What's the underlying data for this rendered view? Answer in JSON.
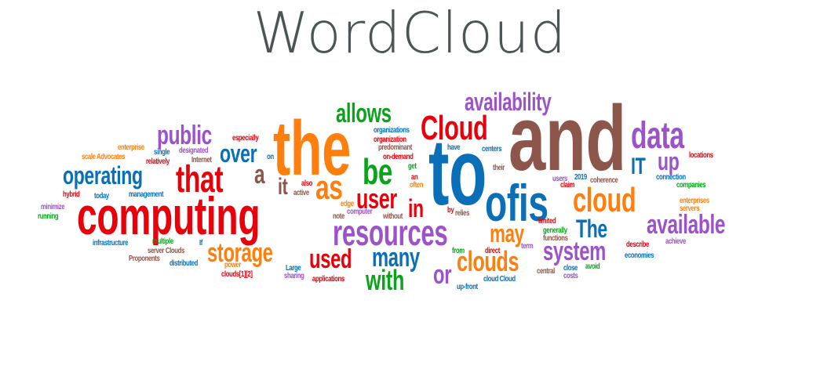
{
  "title": "WordCloud",
  "colors": {
    "red": "#e8000b",
    "orange": "#ff7f0e",
    "blue": "#0a6fb6",
    "green": "#0aa31b",
    "purple": "#9c52c8",
    "brown": "#8c564b"
  },
  "words": [
    {
      "text": "and"
    },
    {
      "text": "to"
    },
    {
      "text": "the"
    },
    {
      "text": "computing"
    },
    {
      "text": "ofis"
    },
    {
      "text": "resources"
    },
    {
      "text": "Cloud"
    },
    {
      "text": "cloud"
    },
    {
      "text": "data"
    },
    {
      "text": "that"
    },
    {
      "text": "be"
    },
    {
      "text": "availability"
    },
    {
      "text": "allows"
    },
    {
      "text": "available"
    },
    {
      "text": "operating"
    },
    {
      "text": "public"
    },
    {
      "text": "system"
    },
    {
      "text": "clouds"
    },
    {
      "text": "as"
    },
    {
      "text": "storage"
    },
    {
      "text": "many"
    },
    {
      "text": "with"
    },
    {
      "text": "used"
    },
    {
      "text": "over"
    },
    {
      "text": "user"
    },
    {
      "text": "The"
    },
    {
      "text": "may"
    },
    {
      "text": "or"
    },
    {
      "text": "up"
    },
    {
      "text": "IT"
    },
    {
      "text": "in"
    },
    {
      "text": "a"
    },
    {
      "text": "it"
    },
    {
      "text": "especially"
    },
    {
      "text": "enterprise"
    },
    {
      "text": "scale Advocates"
    },
    {
      "text": "single"
    },
    {
      "text": "designated"
    },
    {
      "text": "relatively"
    },
    {
      "text": "on"
    },
    {
      "text": "Internet"
    },
    {
      "text": "organizations"
    },
    {
      "text": "organization"
    },
    {
      "text": "predominant"
    },
    {
      "text": "on-demand"
    },
    {
      "text": "have"
    },
    {
      "text": "centers"
    },
    {
      "text": "their"
    },
    {
      "text": "get"
    },
    {
      "text": "an"
    },
    {
      "text": "often"
    },
    {
      "text": "also"
    },
    {
      "text": "active"
    },
    {
      "text": "edge"
    },
    {
      "text": "computer"
    },
    {
      "text": "note"
    },
    {
      "text": "without"
    },
    {
      "text": "by"
    },
    {
      "text": "relies"
    },
    {
      "text": "hybrid"
    },
    {
      "text": "today"
    },
    {
      "text": "management"
    },
    {
      "text": "minimize"
    },
    {
      "text": "running"
    },
    {
      "text": "users"
    },
    {
      "text": "claim"
    },
    {
      "text": "2019"
    },
    {
      "text": "coherence"
    },
    {
      "text": "connection"
    },
    {
      "text": "companies"
    },
    {
      "text": "locations"
    },
    {
      "text": "enterprises"
    },
    {
      "text": "servers"
    },
    {
      "text": "limited"
    },
    {
      "text": "generally"
    },
    {
      "text": "functions"
    },
    {
      "text": "describe"
    },
    {
      "text": "achieve"
    },
    {
      "text": "economies"
    },
    {
      "text": "avoid"
    },
    {
      "text": "close"
    },
    {
      "text": "costs"
    },
    {
      "text": "central"
    },
    {
      "text": "term"
    },
    {
      "text": "direct"
    },
    {
      "text": "from"
    },
    {
      "text": "cloud Cloud"
    },
    {
      "text": "up-front"
    },
    {
      "text": "multiple"
    },
    {
      "text": "infrastructure"
    },
    {
      "text": "If"
    },
    {
      "text": "server Clouds"
    },
    {
      "text": "Proponents"
    },
    {
      "text": "distributed"
    },
    {
      "text": "power"
    },
    {
      "text": "clouds[1][2]"
    },
    {
      "text": "Large"
    },
    {
      "text": "sharing"
    },
    {
      "text": "applications"
    }
  ]
}
